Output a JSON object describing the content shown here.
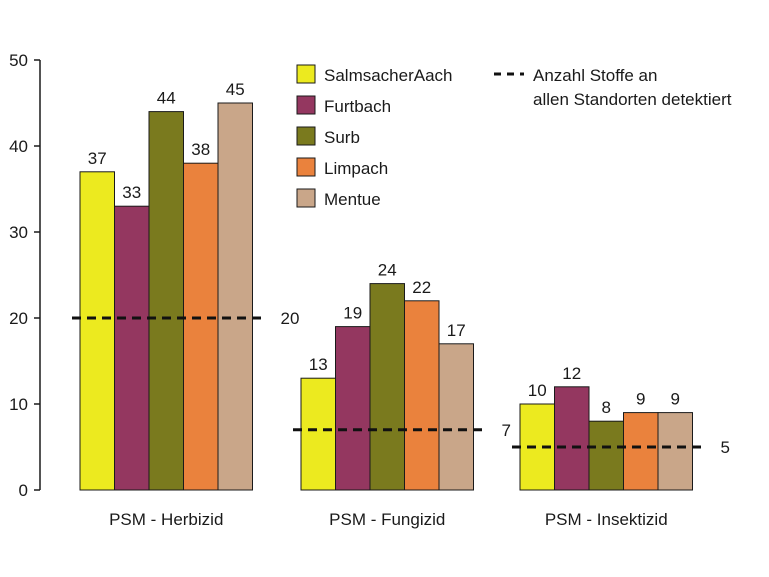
{
  "chart_data": {
    "type": "bar",
    "categories": [
      "PSM - Herbizid",
      "PSM - Fungizid",
      "PSM - Insektizid"
    ],
    "series": [
      {
        "name": "SalmsacherAach",
        "color": "#ecea1f",
        "values": [
          37,
          13,
          10
        ]
      },
      {
        "name": "Furtbach",
        "color": "#943760",
        "values": [
          33,
          19,
          12
        ]
      },
      {
        "name": "Surb",
        "color": "#7a7a1e",
        "values": [
          44,
          24,
          8
        ]
      },
      {
        "name": "Limpach",
        "color": "#ea823d",
        "values": [
          38,
          22,
          9
        ]
      },
      {
        "name": "Mentue",
        "color": "#c9a689",
        "values": [
          45,
          17,
          9
        ]
      }
    ],
    "reference_lines": {
      "label": "Anzahl Stoffe an allen Standorten detektiert",
      "label_lines": [
        "Anzahl Stoffe an",
        "allen Standorten detektiert"
      ],
      "values": [
        20,
        7,
        5
      ],
      "style": "dashed"
    },
    "ylim": [
      0,
      50
    ],
    "yticks": [
      0,
      10,
      20,
      30,
      40,
      50
    ],
    "xlabel": "",
    "ylabel": "",
    "title": "",
    "grid": false,
    "legend": "top-center"
  }
}
